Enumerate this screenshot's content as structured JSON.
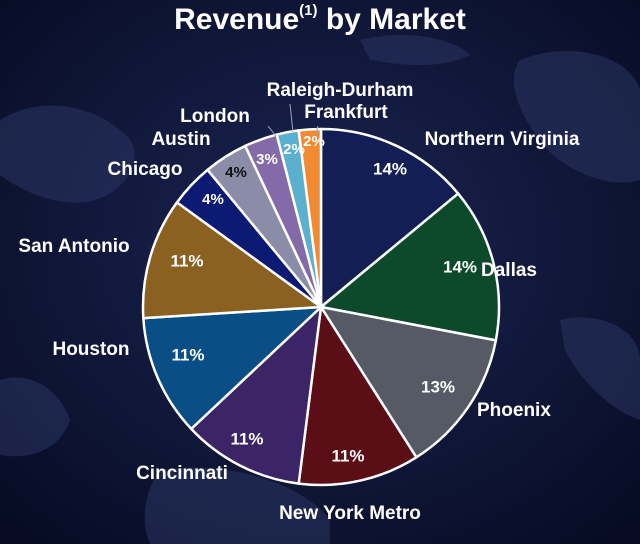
{
  "title": {
    "text": "Revenue",
    "superscript": "(1)",
    "suffix": " by Market"
  },
  "chart_data": {
    "type": "pie",
    "title": "Revenue(1) by Market",
    "start_angle_deg": 0,
    "direction": "clockwise",
    "slices": [
      {
        "label": "Northern Virginia",
        "value": 14,
        "display": "14%",
        "color": "#131f54"
      },
      {
        "label": "Dallas",
        "value": 14,
        "display": "14%",
        "color": "#0d4a2c"
      },
      {
        "label": "Phoenix",
        "value": 13,
        "display": "13%",
        "color": "#555a64"
      },
      {
        "label": "New York Metro",
        "value": 11,
        "display": "11%",
        "color": "#5b0e16"
      },
      {
        "label": "Cincinnati",
        "value": 11,
        "display": "11%",
        "color": "#3c2566"
      },
      {
        "label": "Houston",
        "value": 11,
        "display": "11%",
        "color": "#094e84"
      },
      {
        "label": "San Antonio",
        "value": 11,
        "display": "11%",
        "color": "#8b6122"
      },
      {
        "label": "Chicago",
        "value": 4,
        "display": "4%",
        "color": "#0c1a74"
      },
      {
        "label": "Austin",
        "value": 4,
        "display": "4%",
        "color": "#8a8ca8"
      },
      {
        "label": "London",
        "value": 3,
        "display": "3%",
        "color": "#846aa8"
      },
      {
        "label": "Raleigh-Durham",
        "value": 2,
        "display": "2%",
        "color": "#5bb0d0"
      },
      {
        "label": "Frankfurt",
        "value": 2,
        "display": "2%",
        "color": "#f28a32"
      }
    ]
  }
}
